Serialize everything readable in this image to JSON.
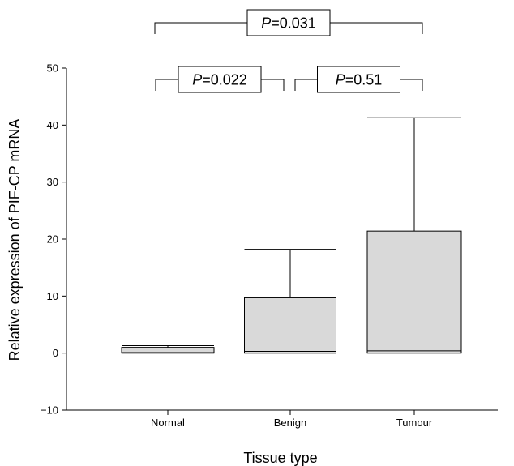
{
  "chart_data": {
    "type": "box",
    "xlabel": "Tissue type",
    "ylabel": "Relative expression of PIF-CP mRNA",
    "ylim": [
      -10,
      50
    ],
    "yticks": [
      -10,
      0,
      10,
      20,
      30,
      40,
      50
    ],
    "ytick_labels": [
      "−10",
      "0",
      "10",
      "20",
      "30",
      "40",
      "50"
    ],
    "categories": [
      "Normal",
      "Benign",
      "Tumour"
    ],
    "boxes": [
      {
        "category": "Normal",
        "min": 0.0,
        "q1": 0.0,
        "median": 0.1,
        "q3": 1.0,
        "max": 1.3
      },
      {
        "category": "Benign",
        "min": 0.0,
        "q1": 0.0,
        "median": 0.3,
        "q3": 9.7,
        "max": 18.2
      },
      {
        "category": "Tumour",
        "min": 0.0,
        "q1": 0.0,
        "median": 0.4,
        "q3": 21.4,
        "max": 41.3
      }
    ],
    "box_fill": "#d9d9d9",
    "grid": false,
    "comparisons": [
      {
        "from": "Normal",
        "to": "Benign",
        "p_italic": "P",
        "p_value": "=0.022",
        "tier": 1
      },
      {
        "from": "Benign",
        "to": "Tumour",
        "p_italic": "P",
        "p_value": "=0.51",
        "tier": 1
      },
      {
        "from": "Normal",
        "to": "Tumour",
        "p_italic": "P",
        "p_value": "=0.031",
        "tier": 2
      }
    ]
  }
}
